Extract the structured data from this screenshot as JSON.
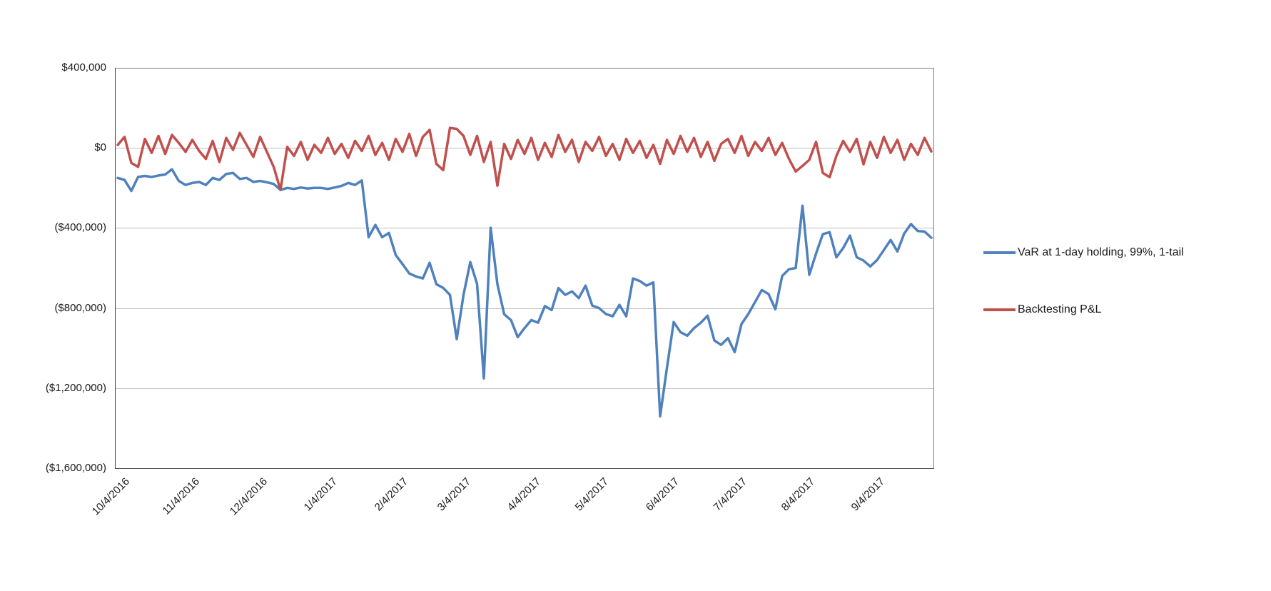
{
  "chart_data": {
    "type": "line",
    "title": "",
    "xlabel": "",
    "ylabel": "",
    "grid": true,
    "legend_position": "right",
    "ylim": [
      -1600000,
      400000
    ],
    "y_ticks": [
      {
        "value": 400000,
        "label": "$400,000"
      },
      {
        "value": 0,
        "label": "$0"
      },
      {
        "value": -400000,
        "label": "($400,000)"
      },
      {
        "value": -800000,
        "label": "($800,000)"
      },
      {
        "value": -1200000,
        "label": "($1,200,000)"
      },
      {
        "value": -1600000,
        "label": "($1,600,000)"
      }
    ],
    "x_ticks": [
      {
        "pos": 0,
        "label": "10/4/2016"
      },
      {
        "pos": 10.33,
        "label": "11/4/2016"
      },
      {
        "pos": 20.33,
        "label": "12/4/2016"
      },
      {
        "pos": 30.67,
        "label": "1/4/2017"
      },
      {
        "pos": 41,
        "label": "2/4/2017"
      },
      {
        "pos": 50.33,
        "label": "3/4/2017"
      },
      {
        "pos": 60.67,
        "label": "4/4/2017"
      },
      {
        "pos": 70.67,
        "label": "5/4/2017"
      },
      {
        "pos": 81,
        "label": "6/4/2017"
      },
      {
        "pos": 91,
        "label": "7/4/2017"
      },
      {
        "pos": 101,
        "label": "8/4/2017"
      },
      {
        "pos": 111.33,
        "label": "9/4/2017"
      }
    ],
    "x_dates": [
      "10/4/2016",
      "10/7/2016",
      "10/10/2016",
      "10/13/2016",
      "10/16/2016",
      "10/19/2016",
      "10/22/2016",
      "10/25/2016",
      "10/28/2016",
      "10/31/2016",
      "11/3/2016",
      "11/6/2016",
      "11/9/2016",
      "11/12/2016",
      "11/15/2016",
      "11/18/2016",
      "11/21/2016",
      "11/24/2016",
      "11/27/2016",
      "11/30/2016",
      "12/3/2016",
      "12/6/2016",
      "12/9/2016",
      "12/12/2016",
      "12/15/2016",
      "12/18/2016",
      "12/21/2016",
      "12/24/2016",
      "12/27/2016",
      "12/30/2016",
      "1/2/2017",
      "1/5/2017",
      "1/8/2017",
      "1/11/2017",
      "1/14/2017",
      "1/17/2017",
      "1/20/2017",
      "1/23/2017",
      "1/26/2017",
      "1/29/2017",
      "2/1/2017",
      "2/4/2017",
      "2/7/2017",
      "2/10/2017",
      "2/13/2017",
      "2/16/2017",
      "2/19/2017",
      "2/22/2017",
      "2/25/2017",
      "2/28/2017",
      "3/3/2017",
      "3/6/2017",
      "3/9/2017",
      "3/12/2017",
      "3/15/2017",
      "3/18/2017",
      "3/21/2017",
      "3/24/2017",
      "3/27/2017",
      "3/30/2017",
      "4/2/2017",
      "4/5/2017",
      "4/8/2017",
      "4/11/2017",
      "4/14/2017",
      "4/17/2017",
      "4/20/2017",
      "4/23/2017",
      "4/26/2017",
      "4/29/2017",
      "5/2/2017",
      "5/5/2017",
      "5/8/2017",
      "5/11/2017",
      "5/14/2017",
      "5/17/2017",
      "5/20/2017",
      "5/23/2017",
      "5/26/2017",
      "5/29/2017",
      "6/1/2017",
      "6/4/2017",
      "6/7/2017",
      "6/10/2017",
      "6/13/2017",
      "6/16/2017",
      "6/19/2017",
      "6/22/2017",
      "6/25/2017",
      "6/28/2017",
      "7/1/2017",
      "7/4/2017",
      "7/7/2017",
      "7/10/2017",
      "7/13/2017",
      "7/16/2017",
      "7/19/2017",
      "7/22/2017",
      "7/25/2017",
      "7/28/2017",
      "8/1/2017",
      "8/4/2017",
      "8/7/2017",
      "8/10/2017",
      "8/13/2017",
      "8/16/2017",
      "8/19/2017",
      "8/22/2017",
      "8/25/2017",
      "8/28/2017",
      "8/31/2017",
      "9/3/2017",
      "9/6/2017",
      "9/9/2017",
      "9/12/2017",
      "9/15/2017",
      "9/18/2017",
      "9/21/2017",
      "9/24/2017",
      "9/27/2017",
      "9/29/2017"
    ],
    "series": [
      {
        "name": "VaR at 1-day holding, 99%, 1-tail",
        "color": "#4F81BD",
        "values": [
          -150000,
          -160000,
          -215000,
          -145000,
          -140000,
          -145000,
          -138000,
          -133000,
          -107000,
          -165000,
          -185000,
          -175000,
          -170000,
          -185000,
          -150000,
          -160000,
          -130000,
          -125000,
          -155000,
          -150000,
          -170000,
          -165000,
          -172000,
          -180000,
          -210000,
          -200000,
          -205000,
          -198000,
          -203000,
          -200000,
          -200000,
          -205000,
          -198000,
          -190000,
          -175000,
          -185000,
          -163000,
          -446000,
          -385000,
          -446000,
          -425000,
          -535000,
          -580000,
          -627000,
          -642000,
          -652000,
          -574000,
          -681000,
          -699000,
          -734000,
          -955000,
          -734000,
          -570000,
          -680000,
          -1151000,
          -399000,
          -681000,
          -831000,
          -860000,
          -945000,
          -900000,
          -860000,
          -873000,
          -790000,
          -810000,
          -700000,
          -734000,
          -717000,
          -750000,
          -688000,
          -788000,
          -800000,
          -830000,
          -841000,
          -784000,
          -841000,
          -652000,
          -665000,
          -688000,
          -672000,
          -1340000,
          -1100000,
          -870000,
          -920000,
          -938000,
          -900000,
          -873000,
          -838000,
          -962000,
          -984000,
          -950000,
          -1020000,
          -880000,
          -830000,
          -770000,
          -710000,
          -730000,
          -806000,
          -640000,
          -606000,
          -600000,
          -289000,
          -634000,
          -528000,
          -431000,
          -421000,
          -546000,
          -500000,
          -438000,
          -546000,
          -563000,
          -592000,
          -560000,
          -510000,
          -460000,
          -517000,
          -428000,
          -380000,
          -415000,
          -418000,
          -449000
        ]
      },
      {
        "name": "Backtesting P&L",
        "color": "#C0504D",
        "values": [
          15000,
          55000,
          -75000,
          -95000,
          45000,
          -25000,
          60000,
          -30000,
          65000,
          25000,
          -20000,
          40000,
          -15000,
          -55000,
          35000,
          -70000,
          50000,
          -10000,
          75000,
          15000,
          -45000,
          55000,
          -20000,
          -95000,
          -210000,
          5000,
          -40000,
          30000,
          -60000,
          15000,
          -25000,
          50000,
          -30000,
          20000,
          -50000,
          35000,
          -15000,
          60000,
          -35000,
          25000,
          -60000,
          45000,
          -20000,
          70000,
          -40000,
          55000,
          90000,
          -80000,
          -111000,
          100000,
          95000,
          60000,
          -35000,
          60000,
          -70000,
          30000,
          -189000,
          20000,
          -55000,
          40000,
          -30000,
          50000,
          -60000,
          25000,
          -45000,
          65000,
          -20000,
          40000,
          -70000,
          30000,
          -15000,
          55000,
          -40000,
          20000,
          -60000,
          45000,
          -25000,
          35000,
          -50000,
          15000,
          -80000,
          40000,
          -30000,
          60000,
          -20000,
          50000,
          -45000,
          30000,
          -65000,
          20000,
          45000,
          -25000,
          60000,
          -40000,
          30000,
          -15000,
          50000,
          -35000,
          25000,
          -55000,
          -118000,
          -90000,
          -60000,
          30000,
          -125000,
          -146000,
          -40000,
          35000,
          -20000,
          45000,
          -82000,
          30000,
          -50000,
          55000,
          -25000,
          40000,
          -60000,
          20000,
          -35000,
          50000,
          -18000
        ]
      }
    ]
  },
  "layout_colors": {
    "gridline": "#BFBFBF",
    "plot_border": "#7F7F7F",
    "axis_line": "#404040",
    "background": "#FFFFFF"
  }
}
